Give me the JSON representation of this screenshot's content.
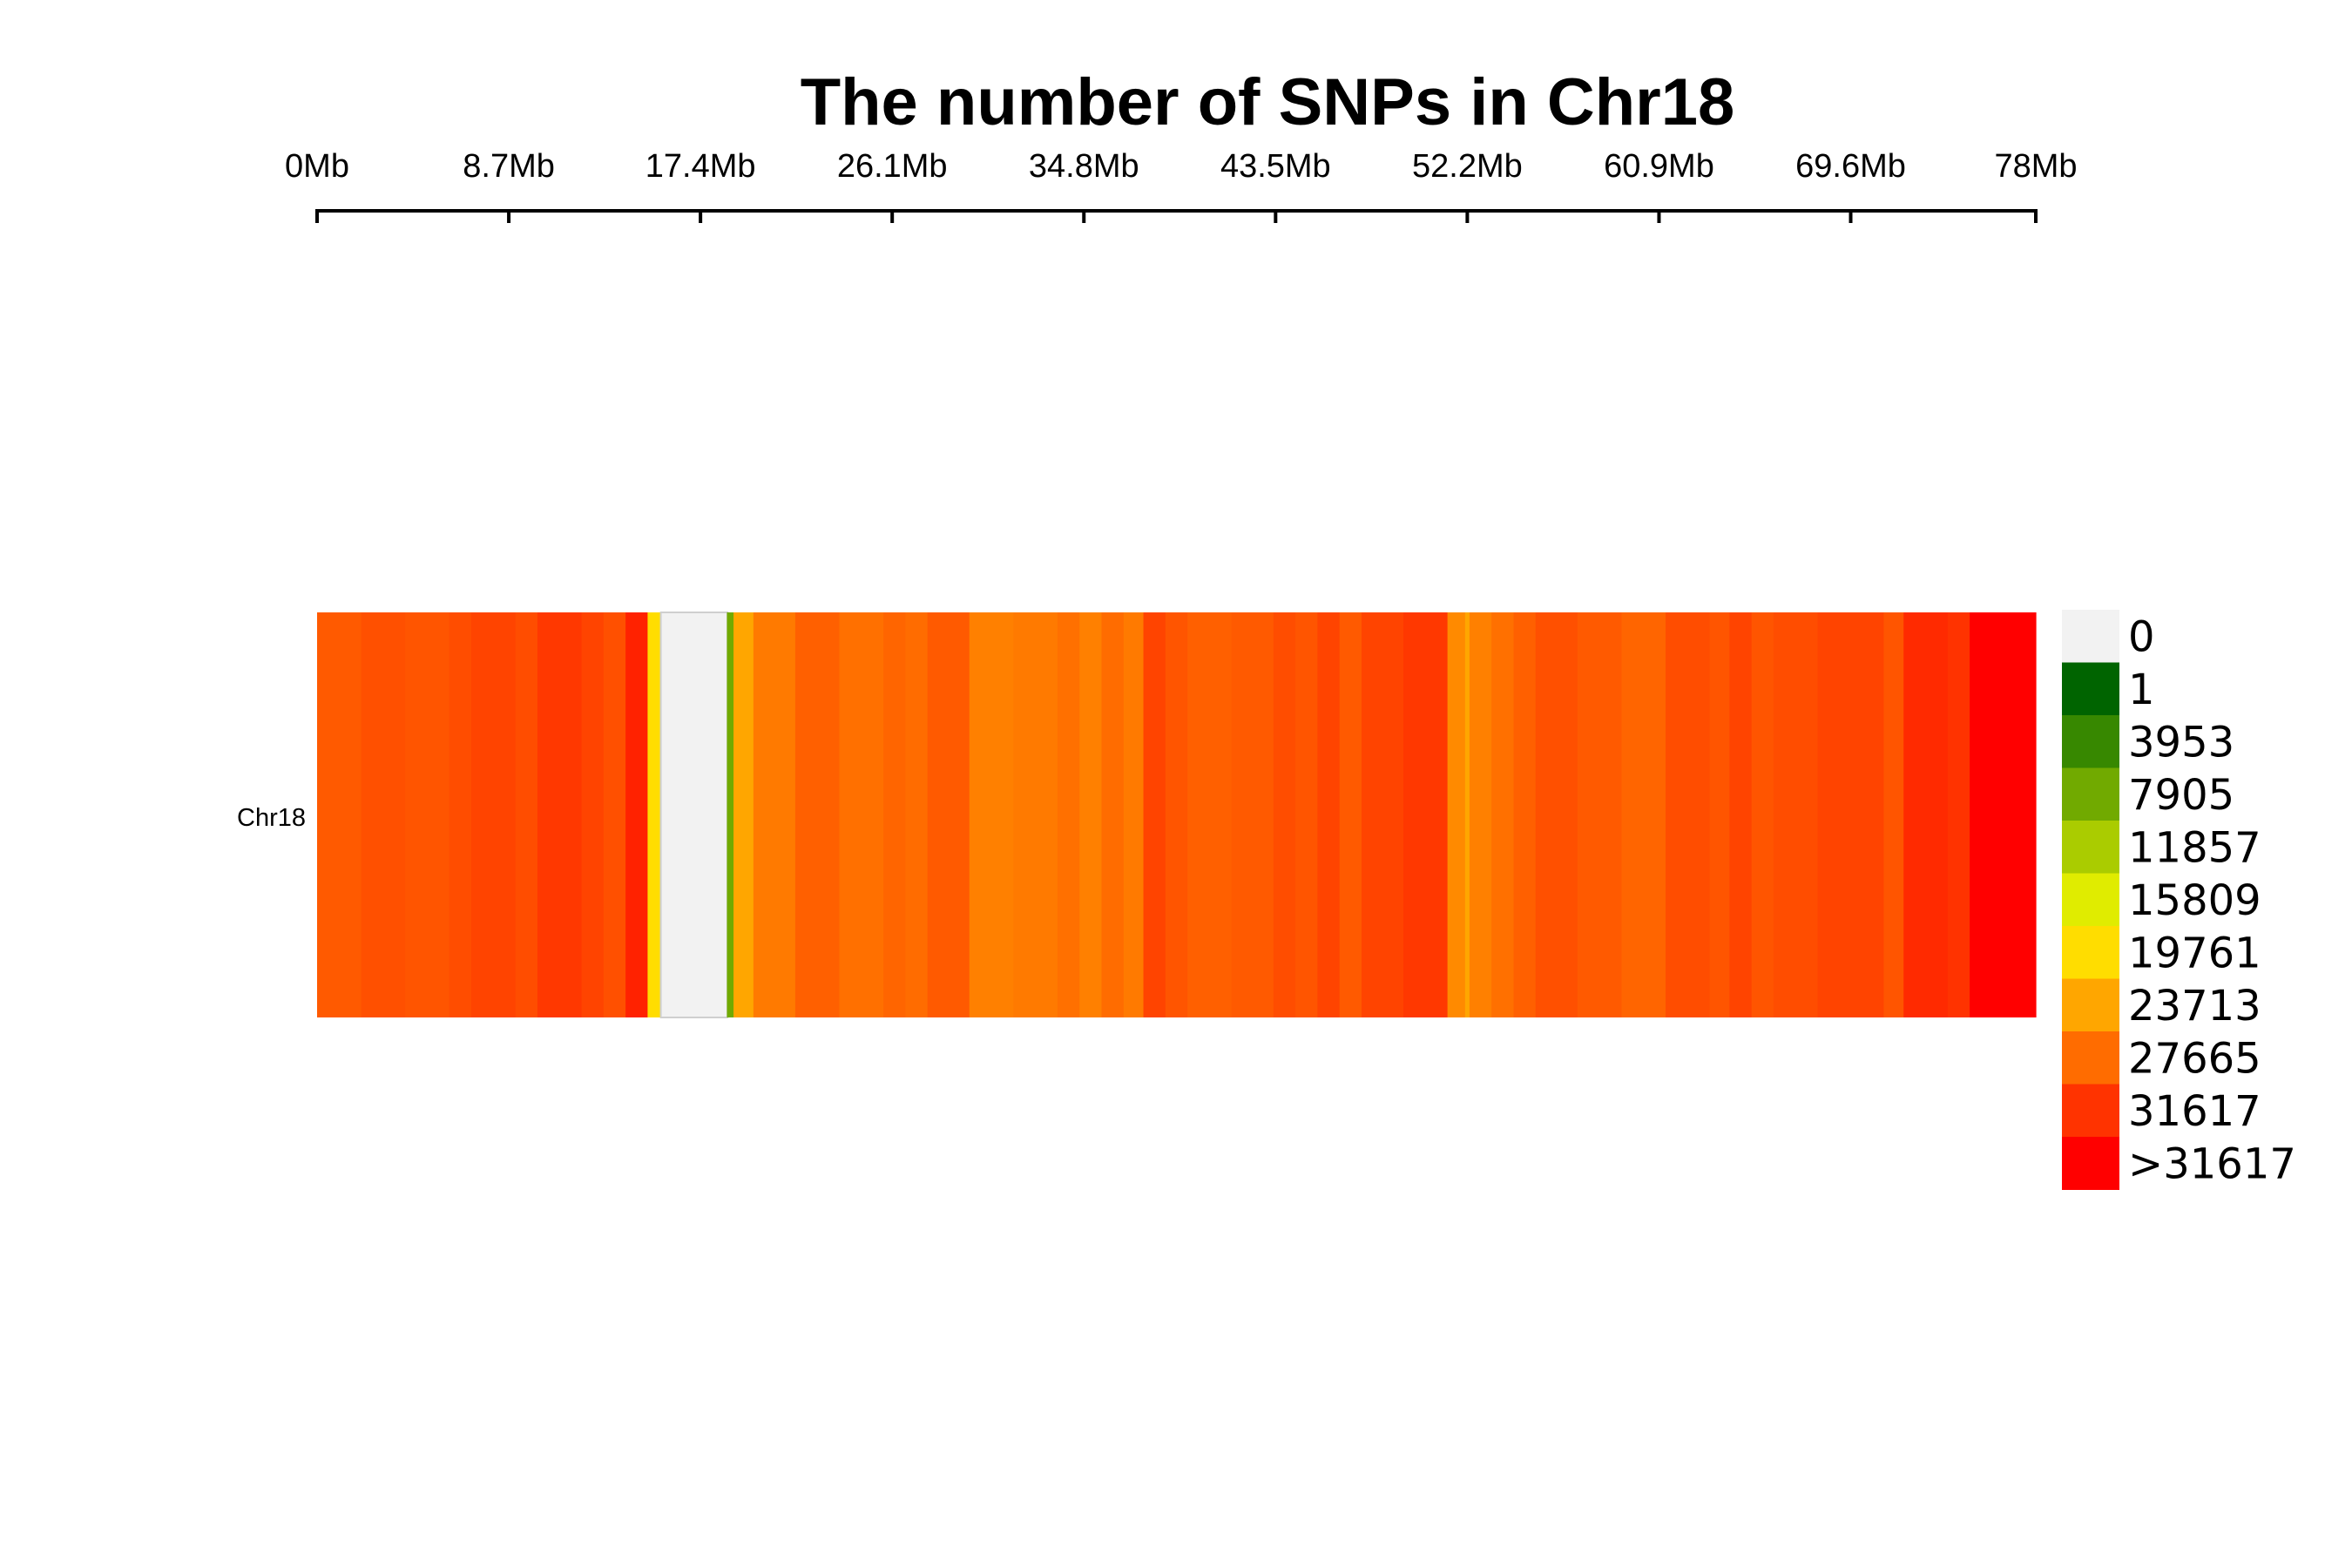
{
  "chart_data": {
    "type": "heatmap",
    "title": "The number of SNPs in Chr18",
    "chromosome": "Chr18",
    "x_range_mb": [
      0,
      78
    ],
    "x_ticks": [
      "0Mb",
      "8.7Mb",
      "17.4Mb",
      "26.1Mb",
      "34.8Mb",
      "43.5Mb",
      "52.2Mb",
      "60.9Mb",
      "69.6Mb",
      "78Mb"
    ],
    "x_tick_values_mb": [
      0,
      8.7,
      17.4,
      26.1,
      34.8,
      43.5,
      52.2,
      60.9,
      69.6,
      78
    ],
    "bin_size_mb": 1,
    "legend": [
      {
        "label": "0",
        "color": "#f2f2f2"
      },
      {
        "label": "1",
        "color": "#006400"
      },
      {
        "label": "3953",
        "color": "#378800"
      },
      {
        "label": "7905",
        "color": "#71aa00"
      },
      {
        "label": "11857",
        "color": "#aacc00"
      },
      {
        "label": "15809",
        "color": "#e0ec00"
      },
      {
        "label": "19761",
        "color": "#ffdd00"
      },
      {
        "label": "23713",
        "color": "#ffa600"
      },
      {
        "label": "27665",
        "color": "#ff6c00"
      },
      {
        "label": "31617",
        "color": "#ff3300"
      },
      {
        "label": ">31617",
        "color": "#ff0000"
      }
    ],
    "bins": [
      {
        "start_mb": 0,
        "end_mb": 2,
        "color": "#ff5a00"
      },
      {
        "start_mb": 2,
        "end_mb": 4,
        "color": "#ff5000"
      },
      {
        "start_mb": 4,
        "end_mb": 6,
        "color": "#ff5500"
      },
      {
        "start_mb": 6,
        "end_mb": 7,
        "color": "#ff4d00"
      },
      {
        "start_mb": 7,
        "end_mb": 9,
        "color": "#ff4400"
      },
      {
        "start_mb": 9,
        "end_mb": 10,
        "color": "#ff4d00"
      },
      {
        "start_mb": 10,
        "end_mb": 12,
        "color": "#ff3800"
      },
      {
        "start_mb": 12,
        "end_mb": 13,
        "color": "#ff4400"
      },
      {
        "start_mb": 13,
        "end_mb": 14,
        "color": "#ff5000"
      },
      {
        "start_mb": 14,
        "end_mb": 15,
        "color": "#ff2200"
      },
      {
        "start_mb": 15,
        "end_mb": 15.6,
        "color": "#ffdd00"
      },
      {
        "start_mb": 15.6,
        "end_mb": 18.6,
        "color": "#f2f2f2"
      },
      {
        "start_mb": 18.6,
        "end_mb": 18.9,
        "color": "#71aa00"
      },
      {
        "start_mb": 18.9,
        "end_mb": 19.8,
        "color": "#ffa600"
      },
      {
        "start_mb": 19.8,
        "end_mb": 21.7,
        "color": "#ff7a00"
      },
      {
        "start_mb": 21.7,
        "end_mb": 23.7,
        "color": "#ff6000"
      },
      {
        "start_mb": 23.7,
        "end_mb": 25.7,
        "color": "#ff7000"
      },
      {
        "start_mb": 25.7,
        "end_mb": 26.7,
        "color": "#ff6500"
      },
      {
        "start_mb": 26.7,
        "end_mb": 27.7,
        "color": "#ff6c00"
      },
      {
        "start_mb": 27.7,
        "end_mb": 29.6,
        "color": "#ff5a00"
      },
      {
        "start_mb": 29.6,
        "end_mb": 31.6,
        "color": "#ff8000"
      },
      {
        "start_mb": 31.6,
        "end_mb": 33.6,
        "color": "#ff7a00"
      },
      {
        "start_mb": 33.6,
        "end_mb": 34.6,
        "color": "#ff7000"
      },
      {
        "start_mb": 34.6,
        "end_mb": 35.6,
        "color": "#ff8000"
      },
      {
        "start_mb": 35.6,
        "end_mb": 36.6,
        "color": "#ff6c00"
      },
      {
        "start_mb": 36.6,
        "end_mb": 37.5,
        "color": "#ff7a00"
      },
      {
        "start_mb": 37.5,
        "end_mb": 38.5,
        "color": "#ff4400"
      },
      {
        "start_mb": 38.5,
        "end_mb": 39.5,
        "color": "#ff5500"
      },
      {
        "start_mb": 39.5,
        "end_mb": 41.5,
        "color": "#ff6000"
      },
      {
        "start_mb": 41.5,
        "end_mb": 43.4,
        "color": "#ff5a00"
      },
      {
        "start_mb": 43.4,
        "end_mb": 44.4,
        "color": "#ff4d00"
      },
      {
        "start_mb": 44.4,
        "end_mb": 45.4,
        "color": "#ff5500"
      },
      {
        "start_mb": 45.4,
        "end_mb": 46.4,
        "color": "#ff4400"
      },
      {
        "start_mb": 46.4,
        "end_mb": 47.4,
        "color": "#ff5a00"
      },
      {
        "start_mb": 47.4,
        "end_mb": 49.3,
        "color": "#ff4400"
      },
      {
        "start_mb": 49.3,
        "end_mb": 51.3,
        "color": "#ff3800"
      },
      {
        "start_mb": 51.3,
        "end_mb": 52.1,
        "color": "#ff8a00"
      },
      {
        "start_mb": 52.1,
        "end_mb": 52.3,
        "color": "#ffa600"
      },
      {
        "start_mb": 52.3,
        "end_mb": 53.3,
        "color": "#ff8000"
      },
      {
        "start_mb": 53.3,
        "end_mb": 54.3,
        "color": "#ff7000"
      },
      {
        "start_mb": 54.3,
        "end_mb": 55.3,
        "color": "#ff6000"
      },
      {
        "start_mb": 55.3,
        "end_mb": 57.2,
        "color": "#ff5000"
      },
      {
        "start_mb": 57.2,
        "end_mb": 59.2,
        "color": "#ff5a00"
      },
      {
        "start_mb": 59.2,
        "end_mb": 61.2,
        "color": "#ff6500"
      },
      {
        "start_mb": 61.2,
        "end_mb": 63.2,
        "color": "#ff4d00"
      },
      {
        "start_mb": 63.2,
        "end_mb": 64.1,
        "color": "#ff5500"
      },
      {
        "start_mb": 64.1,
        "end_mb": 65.1,
        "color": "#ff4400"
      },
      {
        "start_mb": 65.1,
        "end_mb": 66.1,
        "color": "#ff5500"
      },
      {
        "start_mb": 66.1,
        "end_mb": 68.1,
        "color": "#ff4d00"
      },
      {
        "start_mb": 68.1,
        "end_mb": 71.1,
        "color": "#ff4400"
      },
      {
        "start_mb": 71.1,
        "end_mb": 72.0,
        "color": "#ff5500"
      },
      {
        "start_mb": 72.0,
        "end_mb": 74.0,
        "color": "#ff2a00"
      },
      {
        "start_mb": 74.0,
        "end_mb": 75.0,
        "color": "#ff3300"
      },
      {
        "start_mb": 75.0,
        "end_mb": 78.0,
        "color": "#ff0000"
      }
    ]
  }
}
